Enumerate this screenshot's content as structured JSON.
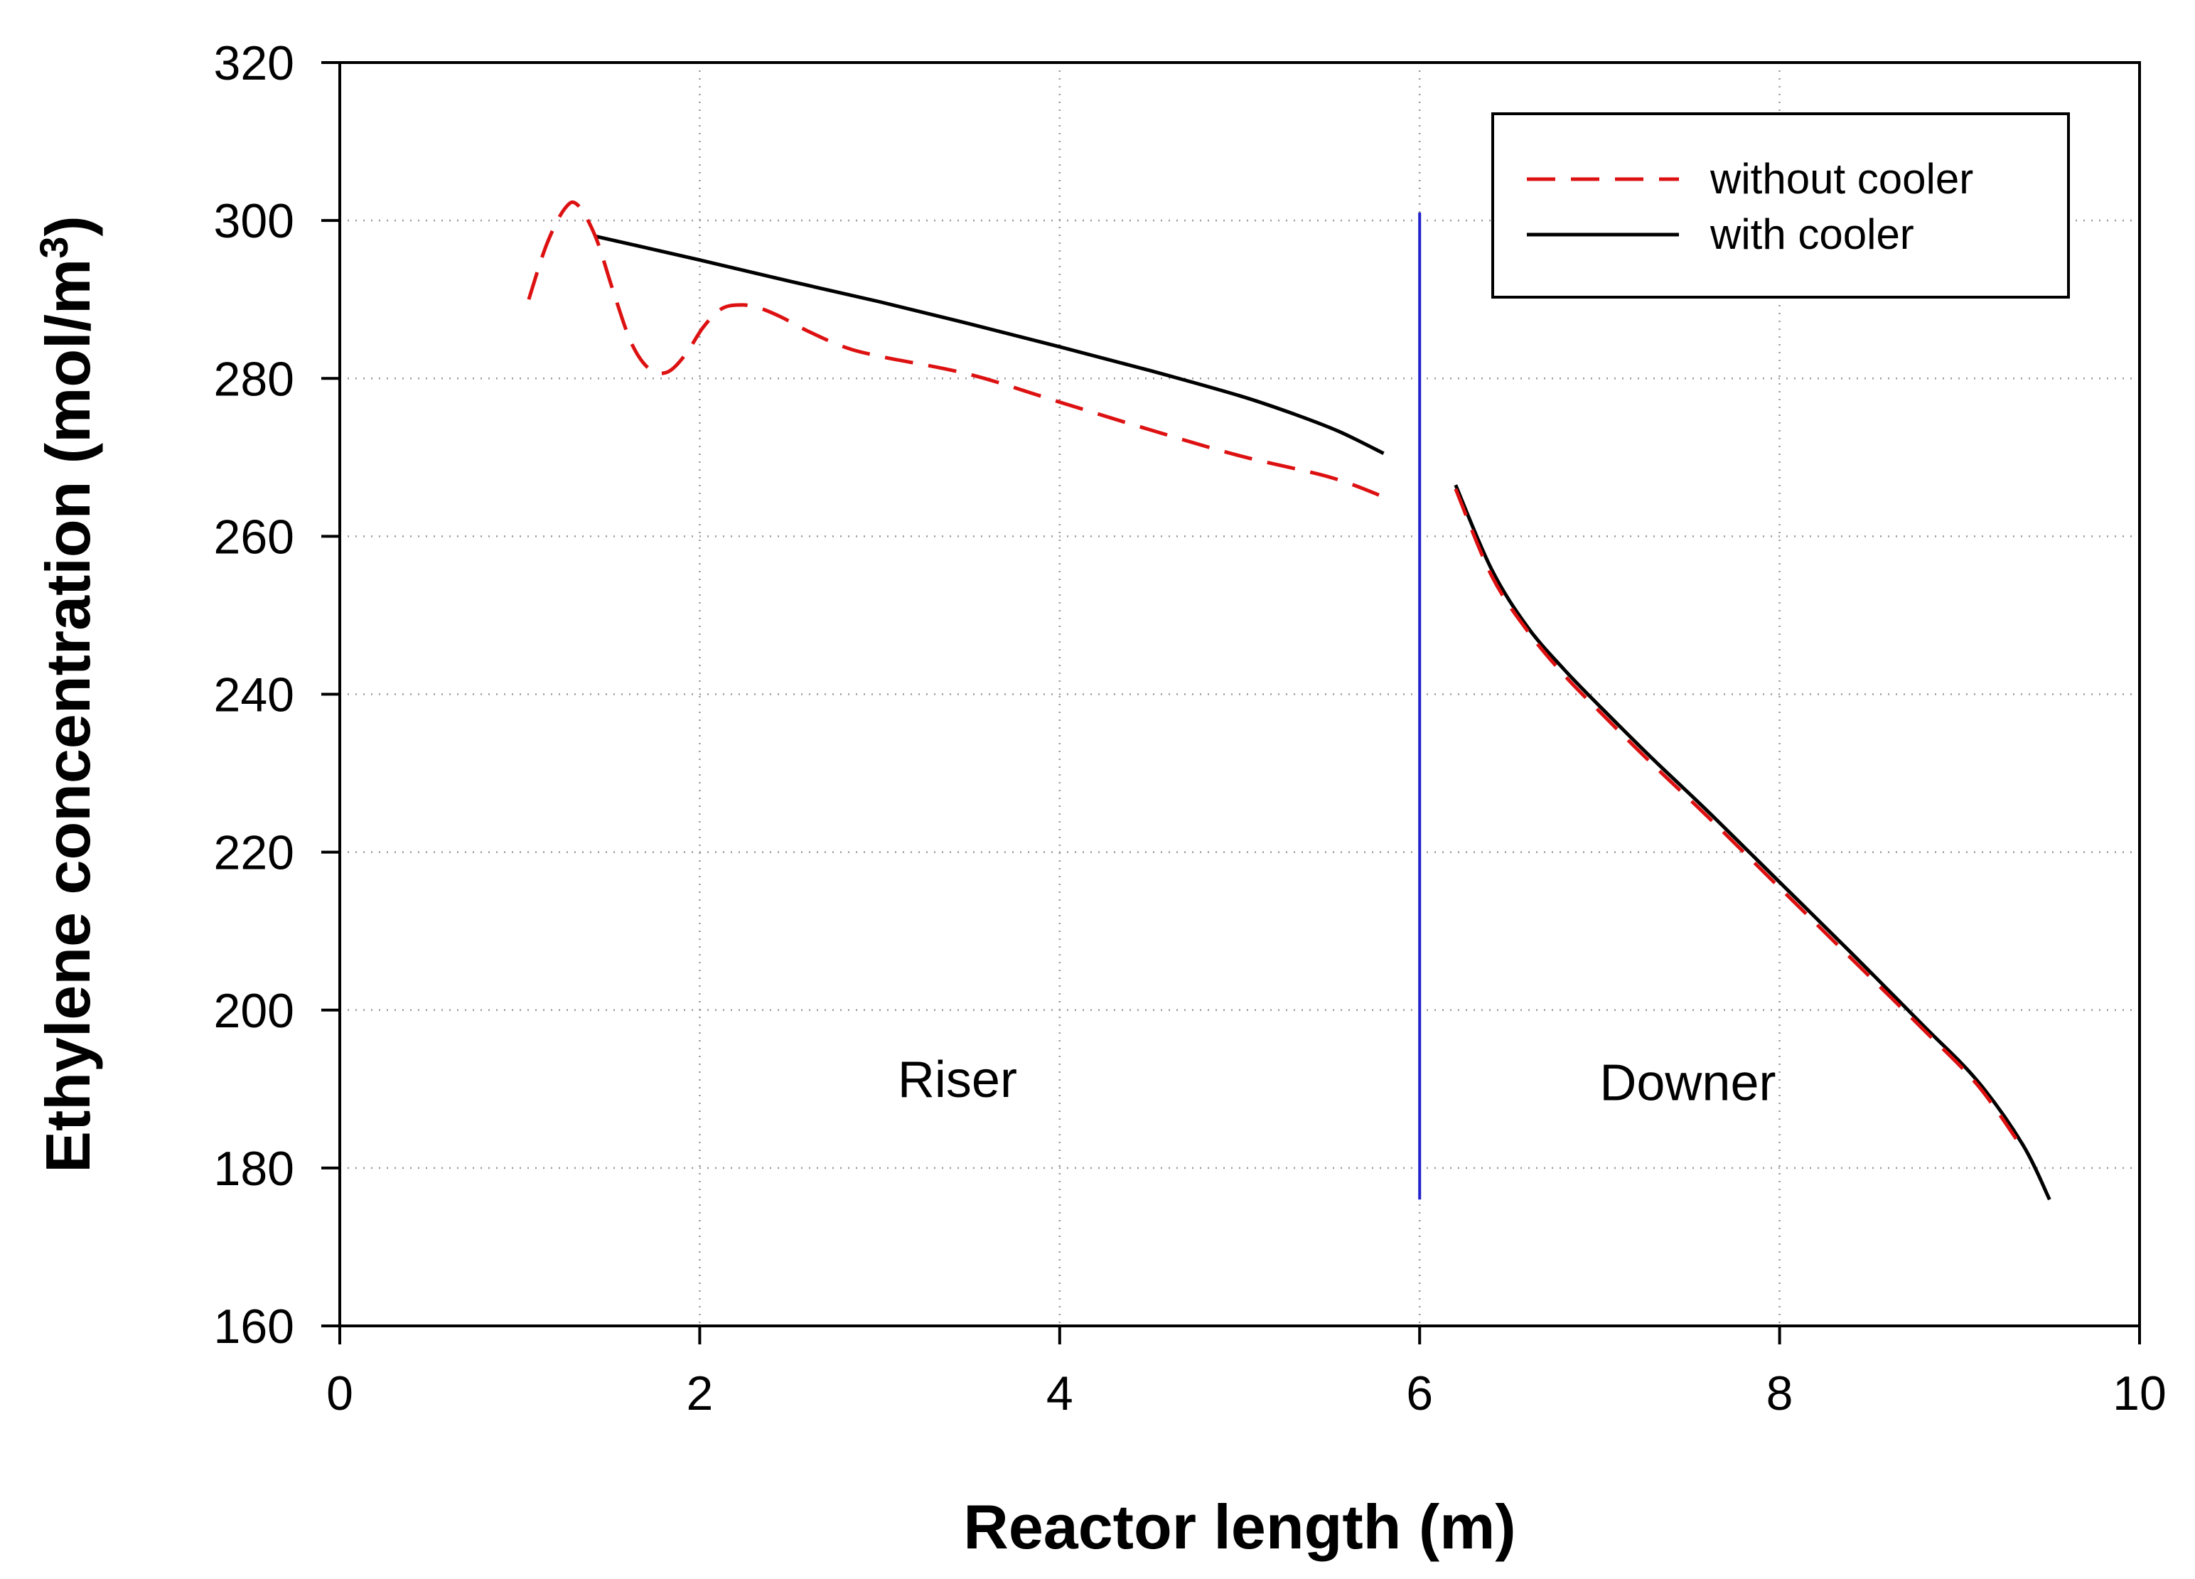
{
  "chart_data": {
    "type": "line",
    "title": "",
    "xlabel": "Reactor length (m)",
    "ylabel_main": "Ethylene concentration (mol/m",
    "ylabel_sup": "3",
    "ylabel_close": ")",
    "xlim": [
      0,
      10
    ],
    "ylim": [
      160,
      320
    ],
    "xticks": [
      0,
      2,
      4,
      6,
      8,
      10
    ],
    "yticks": [
      160,
      180,
      200,
      220,
      240,
      260,
      280,
      300,
      320
    ],
    "grid": "dotted",
    "legend_position": "top-right",
    "colors": {
      "without_cooler": "#dd1111",
      "with_cooler": "#000000",
      "divider": "#2222cc"
    },
    "series": [
      {
        "name": "without cooler",
        "style": "dashed",
        "segments": [
          {
            "x": [
              1.05,
              1.15,
              1.25,
              1.32,
              1.42,
              1.52,
              1.62,
              1.72,
              1.82,
              1.92,
              2.02,
              2.12,
              2.22,
              2.32,
              2.45,
              2.6,
              2.8,
              3.0,
              3.5,
              4.0,
              4.5,
              5.0,
              5.5,
              5.8
            ],
            "y": [
              290,
              297,
              301.5,
              302,
              298,
              291,
              284.5,
              281.2,
              280.8,
              283,
              286.5,
              288.8,
              289.3,
              289,
              287.8,
              286,
              284,
              282.8,
              280.5,
              277,
              273.5,
              270.2,
              267.5,
              265
            ]
          },
          {
            "x": [
              6.2,
              6.4,
              6.6,
              6.8,
              7.0,
              7.3,
              7.6,
              8.0,
              8.4,
              8.8,
              9.1,
              9.35
            ],
            "y": [
              266,
              255,
              248,
              242.5,
              237.8,
              231,
              224.5,
              215.5,
              206.5,
              197.5,
              190.5,
              182.5
            ]
          }
        ]
      },
      {
        "name": "with cooler",
        "style": "solid",
        "segments": [
          {
            "x": [
              1.42,
              2.0,
              2.5,
              3.0,
              3.5,
              4.0,
              4.5,
              5.0,
              5.3,
              5.55,
              5.8
            ],
            "y": [
              298,
              295,
              292.3,
              289.7,
              286.9,
              284,
              281,
              277.8,
              275.5,
              273.3,
              270.5
            ]
          },
          {
            "x": [
              6.2,
              6.4,
              6.6,
              6.8,
              7.0,
              7.3,
              7.6,
              8.0,
              8.4,
              8.8,
              9.1,
              9.35,
              9.5
            ],
            "y": [
              266.5,
              255.8,
              248.5,
              243.2,
              238.5,
              231.7,
              225.2,
              216.2,
              207.2,
              198,
              191,
              183,
              176
            ]
          }
        ]
      }
    ],
    "divider": {
      "x": 6,
      "y_from": 176,
      "y_to": 301
    },
    "annotations": [
      {
        "text": "Riser",
        "x": 3.1,
        "y": 189
      },
      {
        "text": "Downer",
        "x": 7.0,
        "y": 188.6
      }
    ],
    "legend_entries": [
      "without cooler",
      "with cooler"
    ]
  }
}
